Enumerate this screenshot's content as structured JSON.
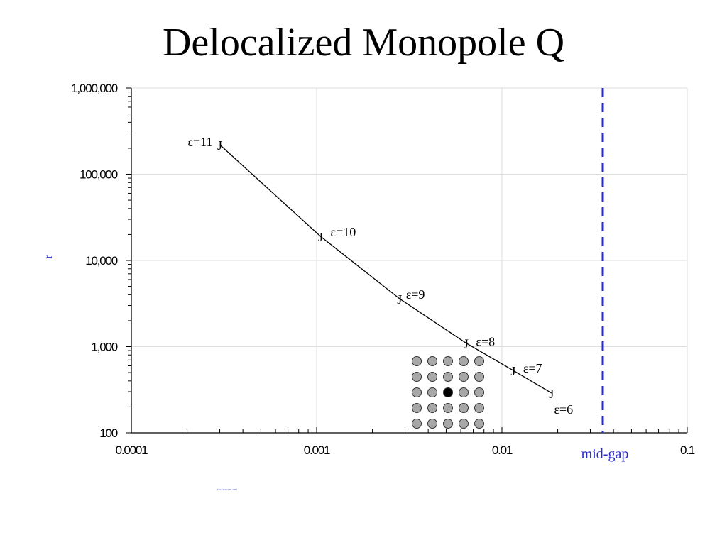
{
  "slide": {
    "title": "Delocalized Monopole Q",
    "footnote": "Fraunhofer ISE 2003"
  },
  "chart_data": {
    "type": "line",
    "title": "Delocalized Monopole Q",
    "xlabel": "",
    "ylabel": "r",
    "x_scale": "log",
    "y_scale": "log",
    "xlim": [
      0.0001,
      0.1
    ],
    "ylim": [
      100,
      1000000
    ],
    "grid": true,
    "x_tick_labels": [
      "0.0001",
      "0.001",
      "0.01",
      "0.1"
    ],
    "y_tick_labels": [
      "100",
      "1,000",
      "10,000",
      "100,000",
      "1,000,000"
    ],
    "series": [
      {
        "points": [
          {
            "x": 0.0003,
            "y": 220000,
            "label": "ε=11"
          },
          {
            "x": 0.00105,
            "y": 19000,
            "label": "ε=10"
          },
          {
            "x": 0.0028,
            "y": 3600,
            "label": "ε=9"
          },
          {
            "x": 0.0064,
            "y": 1100,
            "label": "ε=8"
          },
          {
            "x": 0.0115,
            "y": 530,
            "label": "ε=7"
          },
          {
            "x": 0.0185,
            "y": 290,
            "label": "ε=6"
          }
        ],
        "marker": "J",
        "color": "#000000"
      }
    ],
    "reference_line": {
      "x": 0.035,
      "label": "mid-gap",
      "color": "#2a2acc",
      "style": "dashed"
    },
    "inset_lattice": {
      "rows": 5,
      "cols": 5,
      "highlight_row": 2,
      "highlight_col": 2,
      "fill": "#a8a8a8",
      "highlight_fill": "#000000"
    }
  }
}
